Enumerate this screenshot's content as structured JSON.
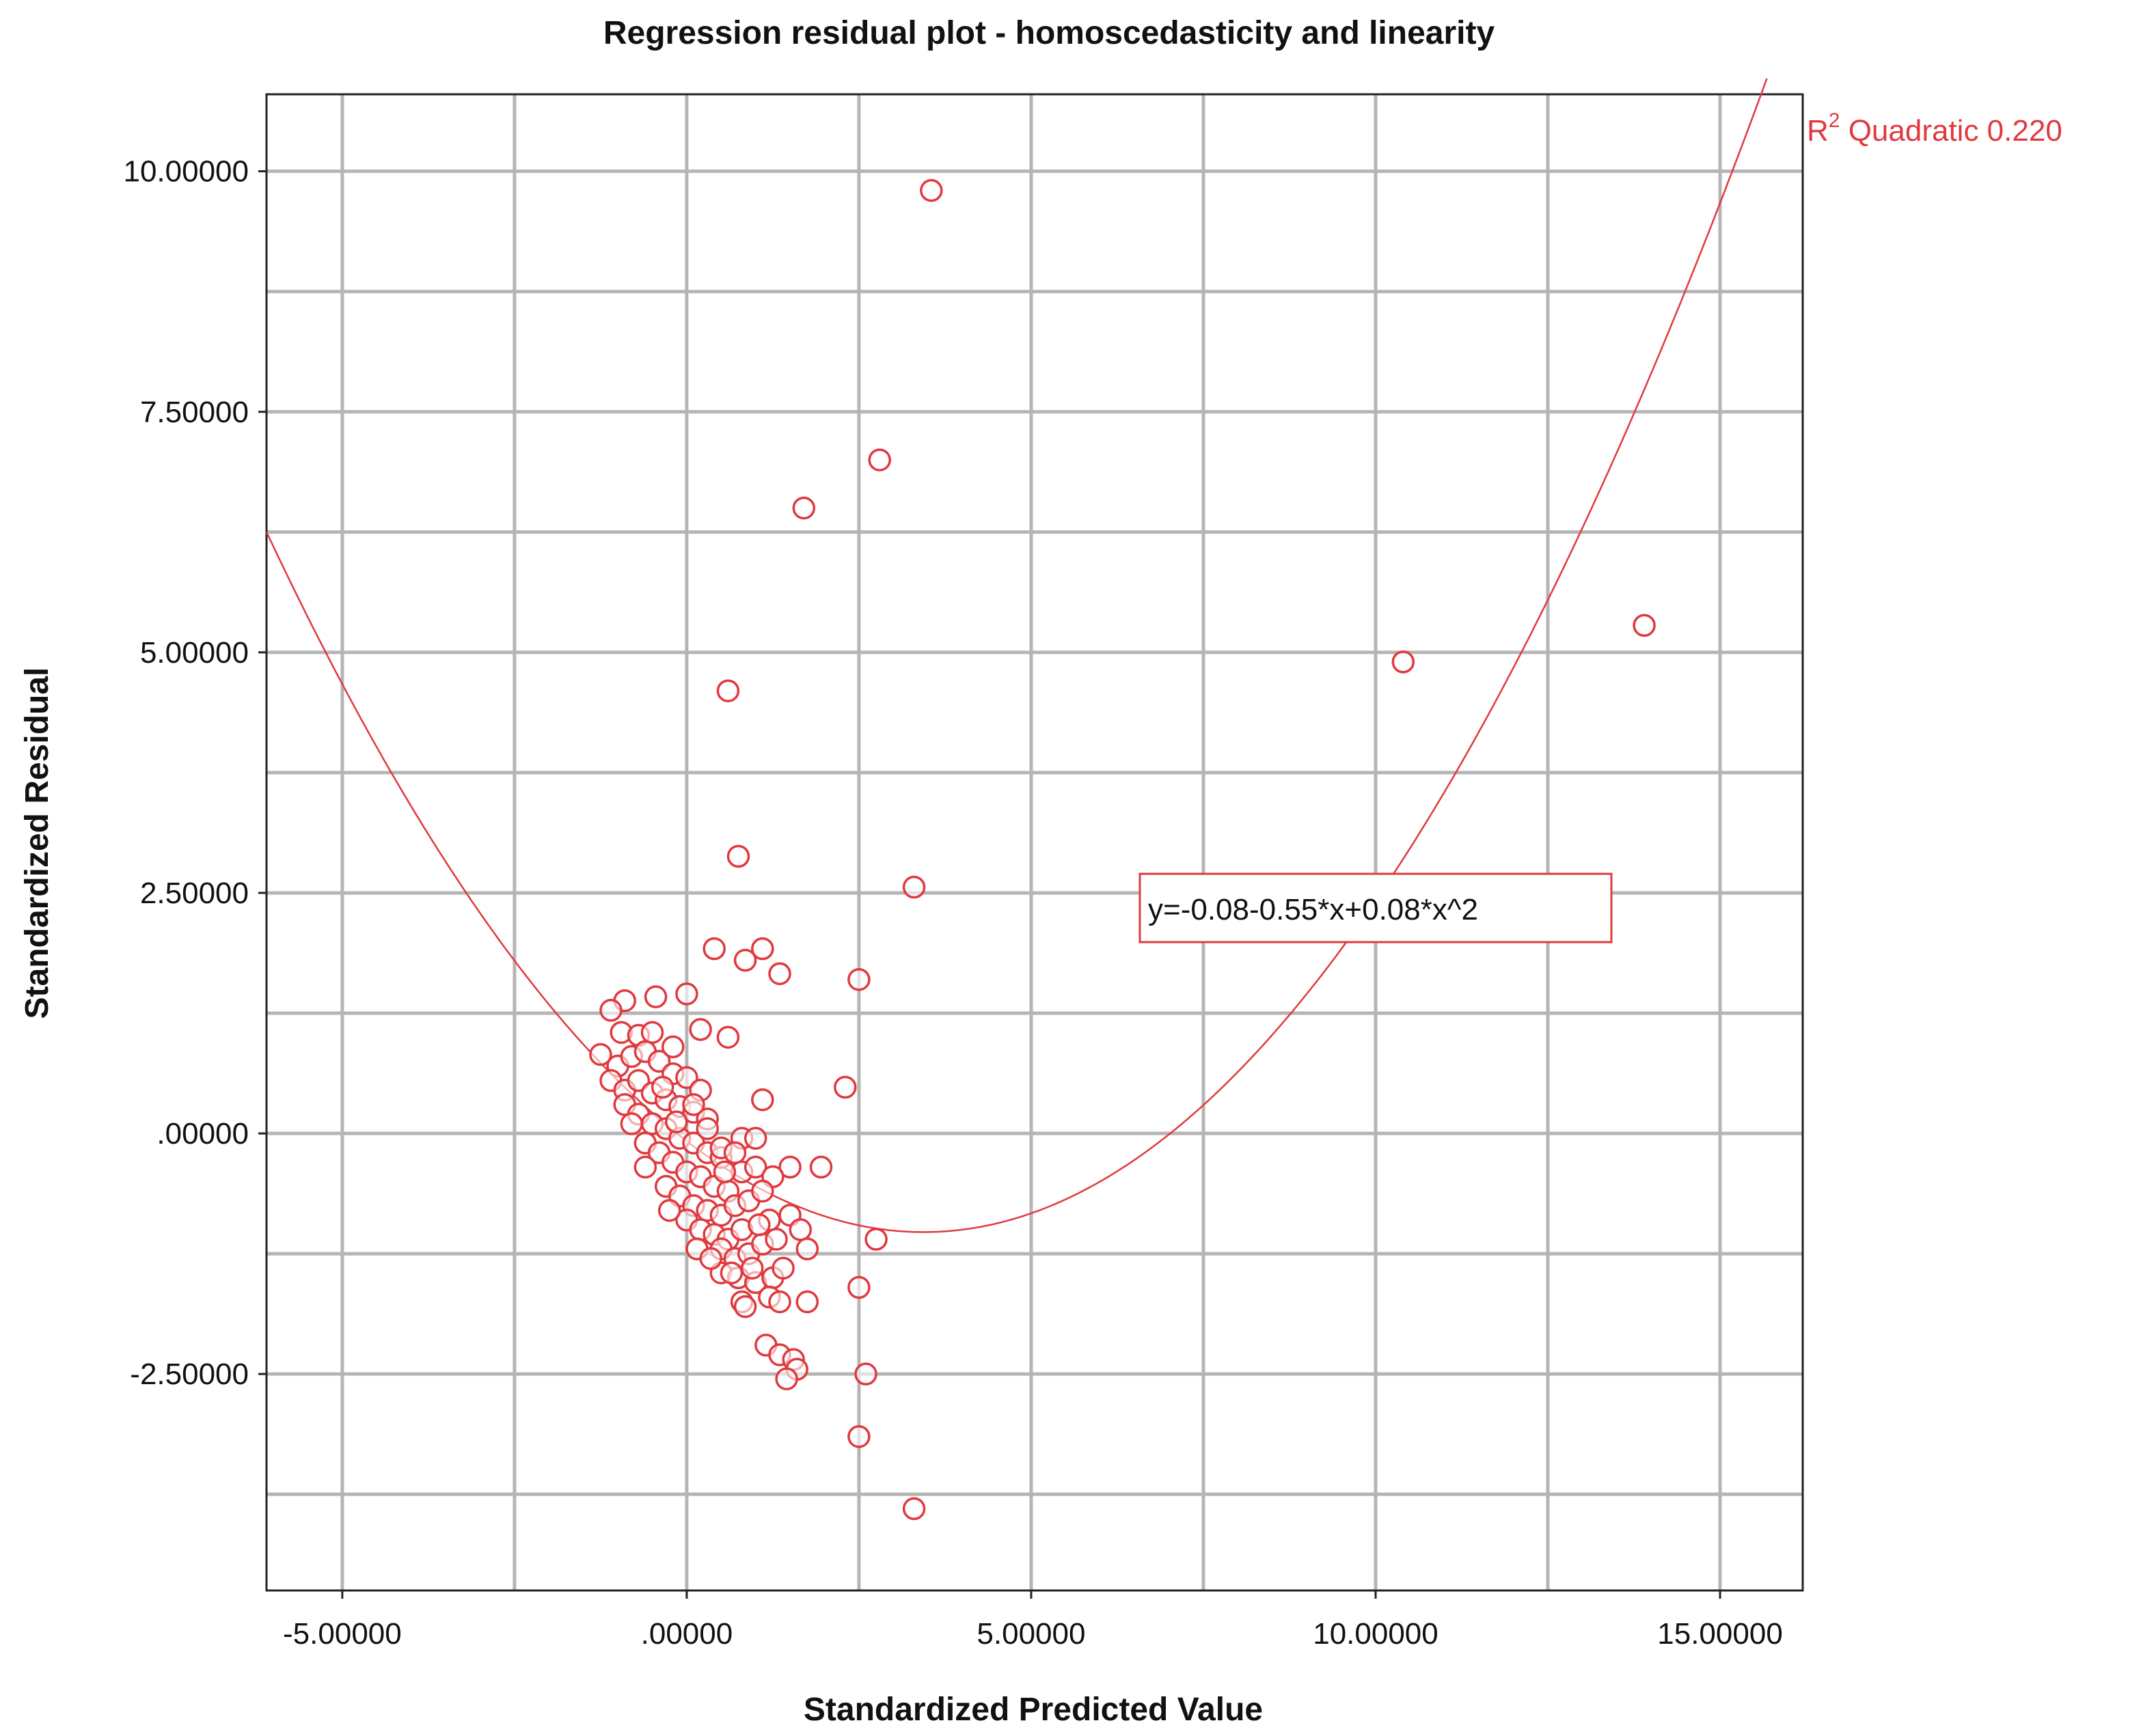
{
  "chart_data": {
    "type": "scatter",
    "title": "Regression residual plot - homoscedasticity and linearity",
    "xlabel": "Standardized Predicted Value",
    "ylabel": "Standardized Residual",
    "xlim": [
      -6.1,
      16.2
    ],
    "ylim": [
      -4.75,
      10.8
    ],
    "xticks": [
      {
        "value": -5,
        "label": "-5.00000"
      },
      {
        "value": 0,
        "label": ".00000"
      },
      {
        "value": 5,
        "label": "5.00000"
      },
      {
        "value": 10,
        "label": "10.00000"
      },
      {
        "value": 15,
        "label": "15.00000"
      }
    ],
    "yticks": [
      {
        "value": -2.5,
        "label": "-2.50000"
      },
      {
        "value": 0,
        "label": ".00000"
      },
      {
        "value": 2.5,
        "label": "2.50000"
      },
      {
        "value": 5,
        "label": "5.00000"
      },
      {
        "value": 7.5,
        "label": "7.50000"
      },
      {
        "value": 10,
        "label": "10.00000"
      }
    ],
    "x_gridlines": [
      -5,
      -2.5,
      0,
      2.5,
      5,
      7.5,
      10,
      12.5,
      15
    ],
    "y_gridlines": [
      -3.75,
      -2.5,
      -1.25,
      0,
      1.25,
      2.5,
      3.75,
      5,
      6.25,
      7.5,
      8.75,
      10
    ],
    "grid": true,
    "fit": {
      "type": "quadratic",
      "coefficients": {
        "a": -0.08,
        "b": -0.55,
        "c": 0.08
      },
      "equation_label": "y=-0.08-0.55*x+0.08*x^2",
      "r2_label_prefix": "R",
      "r2_label_sup": "2",
      "r2_label_text": " Quadratic 0.220",
      "color": "#e0393e"
    },
    "point_color": "#e0393e",
    "points": [
      [
        3.55,
        9.8
      ],
      [
        2.8,
        7.0
      ],
      [
        1.7,
        6.5
      ],
      [
        0.6,
        4.6
      ],
      [
        10.4,
        4.9
      ],
      [
        13.9,
        5.28
      ],
      [
        0.75,
        2.88
      ],
      [
        3.3,
        2.56
      ],
      [
        0.4,
        1.92
      ],
      [
        1.1,
        1.92
      ],
      [
        0.85,
        1.8
      ],
      [
        1.35,
        1.66
      ],
      [
        2.5,
        1.6
      ],
      [
        0.0,
        1.45
      ],
      [
        -0.45,
        1.42
      ],
      [
        -0.9,
        1.38
      ],
      [
        -1.1,
        1.28
      ],
      [
        0.2,
        1.08
      ],
      [
        0.6,
        1.0
      ],
      [
        2.3,
        0.48
      ],
      [
        1.1,
        0.35
      ],
      [
        -0.95,
        1.05
      ],
      [
        -0.7,
        1.02
      ],
      [
        -0.5,
        1.05
      ],
      [
        -1.25,
        0.82
      ],
      [
        -1.0,
        0.7
      ],
      [
        -0.8,
        0.8
      ],
      [
        -0.6,
        0.85
      ],
      [
        -0.4,
        0.75
      ],
      [
        -0.2,
        0.62
      ],
      [
        0.0,
        0.58
      ],
      [
        0.2,
        0.45
      ],
      [
        -1.1,
        0.55
      ],
      [
        -0.9,
        0.45
      ],
      [
        -0.7,
        0.55
      ],
      [
        -0.5,
        0.42
      ],
      [
        -0.3,
        0.35
      ],
      [
        -0.1,
        0.28
      ],
      [
        0.1,
        0.22
      ],
      [
        0.3,
        0.15
      ],
      [
        -0.9,
        0.3
      ],
      [
        -0.7,
        0.2
      ],
      [
        -0.5,
        0.1
      ],
      [
        -0.3,
        0.05
      ],
      [
        -0.1,
        -0.05
      ],
      [
        0.1,
        -0.1
      ],
      [
        0.3,
        -0.2
      ],
      [
        0.5,
        -0.25
      ],
      [
        -0.6,
        -0.1
      ],
      [
        -0.4,
        -0.2
      ],
      [
        -0.2,
        -0.3
      ],
      [
        0.0,
        -0.4
      ],
      [
        0.2,
        -0.45
      ],
      [
        0.4,
        -0.55
      ],
      [
        0.6,
        -0.6
      ],
      [
        0.8,
        -0.4
      ],
      [
        1.0,
        -0.35
      ],
      [
        0.8,
        -0.05
      ],
      [
        1.0,
        -0.05
      ],
      [
        1.5,
        -0.35
      ],
      [
        1.95,
        -0.35
      ],
      [
        1.25,
        -0.45
      ],
      [
        -0.3,
        -0.55
      ],
      [
        -0.1,
        -0.65
      ],
      [
        0.1,
        -0.75
      ],
      [
        0.3,
        -0.8
      ],
      [
        0.5,
        -0.85
      ],
      [
        0.7,
        -0.75
      ],
      [
        0.9,
        -0.7
      ],
      [
        1.1,
        -0.6
      ],
      [
        0.0,
        -0.9
      ],
      [
        0.2,
        -1.0
      ],
      [
        0.4,
        -1.05
      ],
      [
        0.6,
        -1.1
      ],
      [
        0.8,
        -1.0
      ],
      [
        1.2,
        -0.9
      ],
      [
        1.5,
        -0.85
      ],
      [
        1.65,
        -1.0
      ],
      [
        0.5,
        -1.2
      ],
      [
        0.7,
        -1.3
      ],
      [
        0.9,
        -1.25
      ],
      [
        1.1,
        -1.15
      ],
      [
        1.3,
        -1.1
      ],
      [
        1.75,
        -1.2
      ],
      [
        2.75,
        -1.1
      ],
      [
        0.5,
        -1.45
      ],
      [
        0.75,
        -1.5
      ],
      [
        1.0,
        -1.55
      ],
      [
        1.25,
        -1.5
      ],
      [
        1.4,
        -1.4
      ],
      [
        0.8,
        -1.75
      ],
      [
        0.85,
        -1.8
      ],
      [
        1.2,
        -1.7
      ],
      [
        1.35,
        -1.75
      ],
      [
        1.75,
        -1.75
      ],
      [
        2.5,
        -1.6
      ],
      [
        1.15,
        -2.2
      ],
      [
        1.35,
        -2.3
      ],
      [
        1.55,
        -2.35
      ],
      [
        1.6,
        -2.45
      ],
      [
        1.45,
        -2.55
      ],
      [
        2.6,
        -2.5
      ],
      [
        2.5,
        -3.15
      ],
      [
        3.3,
        -3.9
      ],
      [
        -0.2,
        0.9
      ],
      [
        0.1,
        0.3
      ],
      [
        0.3,
        0.05
      ],
      [
        0.5,
        -0.15
      ],
      [
        -0.8,
        0.1
      ],
      [
        -0.6,
        -0.35
      ],
      [
        -0.25,
        -0.8
      ],
      [
        0.15,
        -1.2
      ],
      [
        0.35,
        -1.3
      ],
      [
        0.65,
        -1.45
      ],
      [
        0.95,
        -1.4
      ],
      [
        1.05,
        -0.95
      ],
      [
        0.55,
        -0.4
      ],
      [
        0.7,
        -0.2
      ],
      [
        -0.15,
        0.12
      ],
      [
        -0.35,
        0.48
      ]
    ]
  }
}
